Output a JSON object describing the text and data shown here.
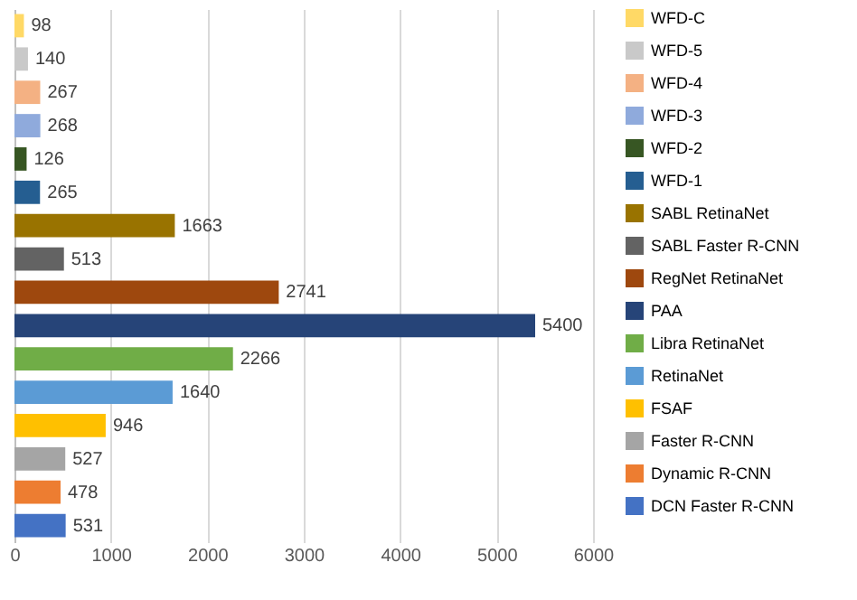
{
  "chart_data": {
    "type": "bar",
    "orientation": "horizontal",
    "categories": [
      null
    ],
    "series": [
      {
        "name": "WFD-C",
        "color": "#ffd966",
        "values": [
          98
        ]
      },
      {
        "name": "WFD-5",
        "color": "#c9c9c9",
        "values": [
          140
        ]
      },
      {
        "name": "WFD-4",
        "color": "#f4b183",
        "values": [
          267
        ]
      },
      {
        "name": "WFD-3",
        "color": "#8faadc",
        "values": [
          268
        ]
      },
      {
        "name": "WFD-2",
        "color": "#375623",
        "values": [
          126
        ]
      },
      {
        "name": "WFD-1",
        "color": "#255e91",
        "values": [
          265
        ]
      },
      {
        "name": "SABL RetinaNet",
        "color": "#997300",
        "values": [
          1663
        ]
      },
      {
        "name": "SABL Faster R-CNN",
        "color": "#636363",
        "values": [
          513
        ]
      },
      {
        "name": "RegNet RetinaNet",
        "color": "#9e480e",
        "values": [
          2741
        ]
      },
      {
        "name": "PAA",
        "color": "#264478",
        "values": [
          5400
        ]
      },
      {
        "name": "Libra RetinaNet",
        "color": "#70ad47",
        "values": [
          2266
        ]
      },
      {
        "name": "RetinaNet",
        "color": "#5b9bd5",
        "values": [
          1640
        ]
      },
      {
        "name": "FSAF",
        "color": "#ffc000",
        "values": [
          946
        ]
      },
      {
        "name": "Faster R-CNN",
        "color": "#a5a5a5",
        "values": [
          527
        ]
      },
      {
        "name": "Dynamic R-CNN",
        "color": "#ed7d31",
        "values": [
          478
        ]
      },
      {
        "name": "DCN Faster R-CNN",
        "color": "#4472c4",
        "values": [
          531
        ]
      }
    ],
    "xlim": [
      0,
      6000
    ],
    "xticks": [
      0,
      1000,
      2000,
      3000,
      4000,
      5000,
      6000
    ],
    "grid": "x",
    "legend": "right",
    "data_labels": true
  }
}
